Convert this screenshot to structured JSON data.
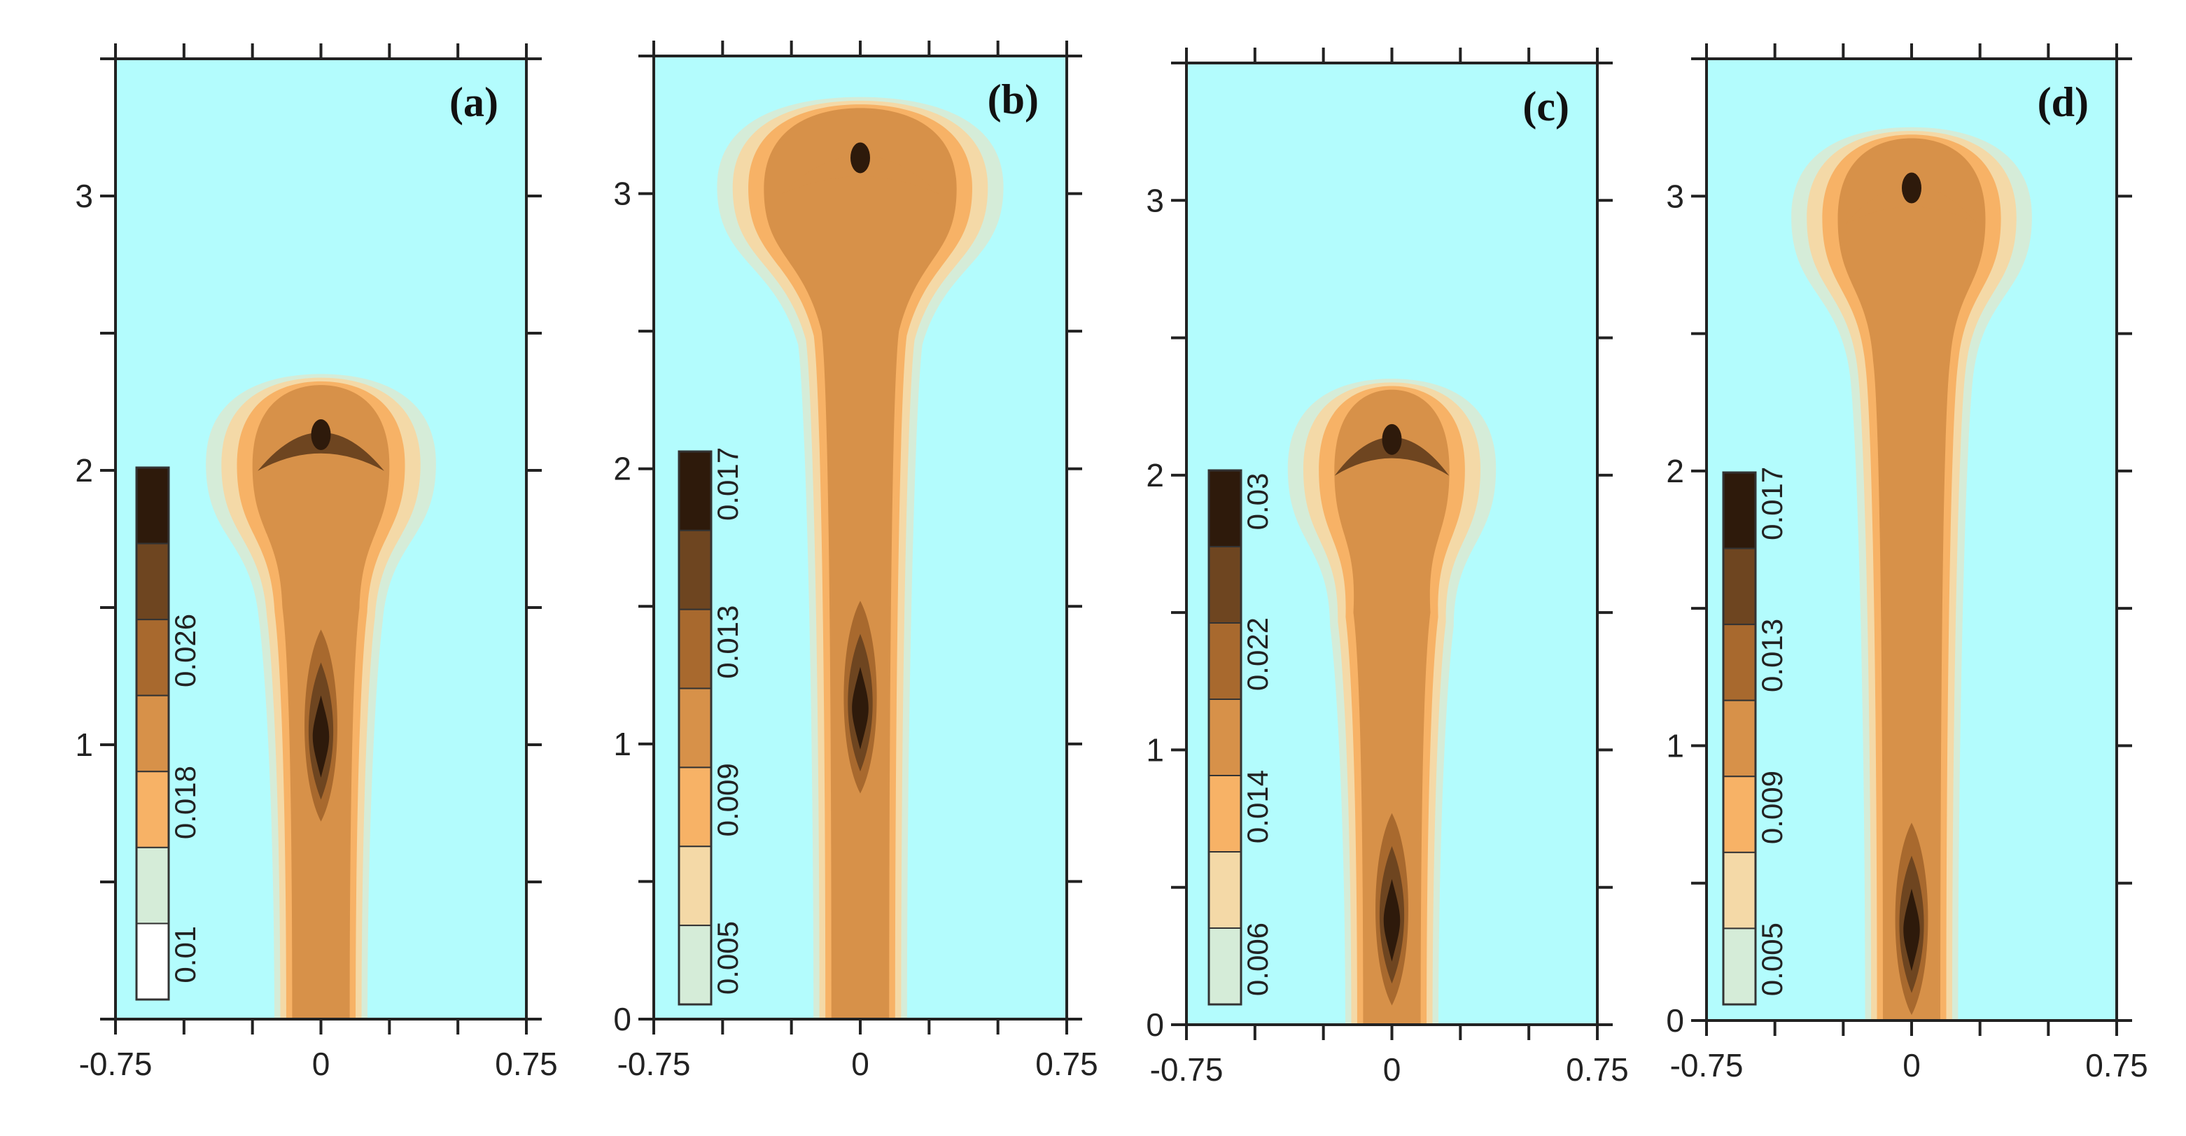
{
  "chart_data": [
    {
      "type": "contour",
      "panel_label": "(a)",
      "xlim": [
        -0.75,
        0.75
      ],
      "ylim": [
        0,
        3.5
      ],
      "x_tick_labels": [
        "-0.75",
        "0",
        "0.75"
      ],
      "y_tick_labels": [
        "1",
        "2",
        "3"
      ],
      "plume_top": 2.3,
      "cap_halfwidth": 0.42,
      "core_peak_y": 1.0,
      "colorbar": {
        "levels": [
          "0.01",
          "0.018",
          "0.026"
        ]
      }
    },
    {
      "type": "contour",
      "panel_label": "(b)",
      "xlim": [
        -0.75,
        0.75
      ],
      "ylim": [
        0,
        3.5
      ],
      "x_tick_labels": [
        "-0.75",
        "0",
        "0.75"
      ],
      "y_tick_labels": [
        "0",
        "1",
        "2",
        "3"
      ],
      "plume_top": 3.3,
      "cap_halfwidth": 0.52,
      "core_peak_y": 1.1,
      "colorbar": {
        "levels": [
          "0.005",
          "0.009",
          "0.013",
          "0.017"
        ]
      }
    },
    {
      "type": "contour",
      "panel_label": "(c)",
      "xlim": [
        -0.75,
        0.75
      ],
      "ylim": [
        0,
        3.5
      ],
      "x_tick_labels": [
        "-0.75",
        "0",
        "0.75"
      ],
      "y_tick_labels": [
        "0",
        "1",
        "2",
        "3"
      ],
      "plume_top": 2.3,
      "cap_halfwidth": 0.38,
      "core_peak_y": 0.35,
      "colorbar": {
        "levels": [
          "0.006",
          "0.014",
          "0.022",
          "0.03"
        ]
      }
    },
    {
      "type": "contour",
      "panel_label": "(d)",
      "xlim": [
        -0.75,
        0.75
      ],
      "ylim": [
        0,
        3.5
      ],
      "x_tick_labels": [
        "-0.75",
        "0",
        "0.75"
      ],
      "y_tick_labels": [
        "0",
        "1",
        "2",
        "3"
      ],
      "plume_top": 3.2,
      "cap_halfwidth": 0.44,
      "core_peak_y": 0.3,
      "colorbar": {
        "levels": [
          "0.005",
          "0.009",
          "0.013",
          "0.017"
        ]
      }
    }
  ],
  "palette": {
    "background": "#b3fcfd",
    "bands": [
      "#ffffff",
      "#d5ecd8",
      "#f4d9a7",
      "#f7b266",
      "#d79149",
      "#a8692e",
      "#6e4520",
      "#2e1a0b"
    ]
  }
}
